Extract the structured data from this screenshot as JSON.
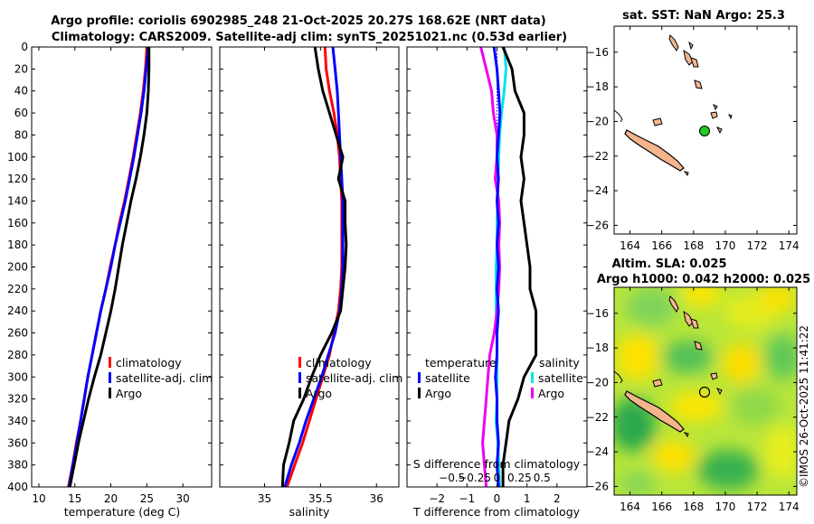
{
  "titles": {
    "line1": "Argo profile: coriolis 6902985_248 21-Oct-2025 20.27S 168.62E (NRT data)",
    "line2": "Climatology: CARS2009. Satellite-adj clim: synTS_20251021.nc (0.53d earlier)",
    "sst": "sat. SST: NaN Argo: 25.3",
    "altim1": "Altim. SLA: 0.025",
    "altim2": "Argo h1000: 0.042 h2000: 0.025",
    "credit": "©IMOS 26-Oct-2025 11:41:22"
  },
  "colors": {
    "climatology": "#ff0000",
    "satellite": "#0000ff",
    "argo": "#000000",
    "sal_satellite": "#00e5ee",
    "sal_argo": "#ee00ee",
    "land": "#f4b58c",
    "marker": "#22cc22"
  },
  "chart_data": [
    {
      "type": "line",
      "name": "temperature",
      "xlabel": "temperature (deg C)",
      "ylabel": "",
      "xlim": [
        9,
        34
      ],
      "ylim": [
        0,
        400
      ],
      "yreverse": true,
      "xticks": [
        10,
        15,
        20,
        25,
        30
      ],
      "yticks": [
        0,
        20,
        40,
        60,
        80,
        100,
        120,
        140,
        160,
        180,
        200,
        220,
        240,
        260,
        280,
        300,
        320,
        340,
        360,
        380,
        400
      ],
      "legend": [
        "climatology",
        "satellite-adj. clim",
        "Argo"
      ],
      "legend_position": "lower-right",
      "series": [
        {
          "name": "climatology",
          "color": "#ff0000",
          "depth": [
            0,
            20,
            40,
            60,
            80,
            100,
            120,
            140,
            160,
            180,
            200,
            220,
            240,
            260,
            280,
            300,
            320,
            340,
            360,
            380,
            400
          ],
          "values": [
            25.0,
            24.8,
            24.5,
            24.1,
            23.6,
            23.1,
            22.5,
            21.9,
            21.2,
            20.6,
            19.9,
            19.3,
            18.6,
            18.0,
            17.4,
            16.8,
            16.3,
            15.8,
            15.2,
            14.7,
            14.1
          ]
        },
        {
          "name": "satellite-adj. clim",
          "color": "#0000ff",
          "depth": [
            0,
            20,
            40,
            60,
            80,
            100,
            120,
            140,
            160,
            180,
            200,
            220,
            240,
            260,
            280,
            300,
            320,
            340,
            360,
            380,
            400
          ],
          "values": [
            25.2,
            24.9,
            24.6,
            24.2,
            23.7,
            23.2,
            22.6,
            22.0,
            21.3,
            20.6,
            20.0,
            19.3,
            18.6,
            18.0,
            17.4,
            16.8,
            16.3,
            15.8,
            15.3,
            14.7,
            14.2
          ]
        },
        {
          "name": "Argo",
          "color": "#000000",
          "depth": [
            0,
            20,
            40,
            60,
            80,
            100,
            120,
            140,
            160,
            180,
            200,
            220,
            240,
            260,
            280,
            300,
            320,
            340,
            360,
            380,
            400
          ],
          "values": [
            25.3,
            25.3,
            25.2,
            25.0,
            24.6,
            24.1,
            23.5,
            22.8,
            22.2,
            21.6,
            21.1,
            20.6,
            20.0,
            19.3,
            18.6,
            17.7,
            16.9,
            16.2,
            15.5,
            14.9,
            14.3
          ]
        }
      ]
    },
    {
      "type": "line",
      "name": "salinity",
      "xlabel": "salinity",
      "ylabel": "",
      "xlim": [
        34.6,
        36.2
      ],
      "ylim": [
        0,
        400
      ],
      "yreverse": true,
      "xticks": [
        35,
        35.5,
        36
      ],
      "legend": [
        "climatology",
        "satellite-adj. clim",
        "Argo"
      ],
      "legend_position": "lower-right",
      "series": [
        {
          "name": "climatology",
          "color": "#ff0000",
          "depth": [
            0,
            20,
            40,
            60,
            80,
            100,
            120,
            140,
            160,
            180,
            200,
            220,
            240,
            260,
            280,
            300,
            320,
            340,
            360,
            380,
            400
          ],
          "values": [
            35.54,
            35.55,
            35.58,
            35.62,
            35.65,
            35.67,
            35.68,
            35.69,
            35.69,
            35.69,
            35.69,
            35.68,
            35.66,
            35.62,
            35.58,
            35.52,
            35.46,
            35.4,
            35.34,
            35.27,
            35.2
          ]
        },
        {
          "name": "satellite-adj. clim",
          "color": "#0000ff",
          "depth": [
            0,
            20,
            40,
            60,
            80,
            100,
            120,
            140,
            160,
            180,
            200,
            220,
            240,
            260,
            280,
            300,
            320,
            340,
            360,
            380,
            400
          ],
          "values": [
            35.61,
            35.63,
            35.65,
            35.66,
            35.67,
            35.68,
            35.69,
            35.7,
            35.7,
            35.7,
            35.7,
            35.69,
            35.67,
            35.63,
            35.57,
            35.51,
            35.44,
            35.37,
            35.31,
            35.24,
            35.18
          ]
        },
        {
          "name": "Argo",
          "color": "#000000",
          "depth": [
            0,
            20,
            40,
            60,
            80,
            100,
            120,
            140,
            160,
            180,
            200,
            220,
            240,
            260,
            280,
            300,
            320,
            340,
            360,
            380,
            400
          ],
          "values": [
            35.45,
            35.48,
            35.52,
            35.58,
            35.64,
            35.7,
            35.66,
            35.72,
            35.72,
            35.73,
            35.72,
            35.7,
            35.68,
            35.6,
            35.5,
            35.42,
            35.35,
            35.26,
            35.22,
            35.17,
            35.16
          ]
        }
      ]
    },
    {
      "type": "line",
      "name": "difference from climatology",
      "xlabel": "T difference from climatology",
      "xlabel2": "S difference from climatology",
      "xlim": [
        -3,
        3
      ],
      "xlim2": [
        -1,
        1
      ],
      "ylim": [
        0,
        400
      ],
      "yreverse": true,
      "xticks": [
        -2,
        -1,
        0,
        1,
        2
      ],
      "xticks2": [
        -0.5,
        -0.25,
        0,
        0.25,
        0.5
      ],
      "legend": [
        "temperature",
        "satellite",
        "Argo",
        "salinity",
        "satellite",
        "Argo"
      ],
      "legend_position": "lower-right",
      "series": [
        {
          "name": "T satellite",
          "color": "#0000ff",
          "depth": [
            0,
            20,
            40,
            60,
            80,
            100,
            120,
            140,
            160,
            180,
            200,
            220,
            240,
            260,
            280,
            300,
            320,
            340,
            360,
            380,
            400
          ],
          "values": [
            -0.1,
            0.0,
            0.05,
            0.1,
            0.05,
            0.0,
            0.05,
            0.0,
            0.05,
            0.0,
            0.05,
            0.0,
            0.05,
            0.0,
            0.0,
            -0.05,
            0.0,
            0.0,
            0.05,
            0.0,
            0.05
          ]
        },
        {
          "name": "T Argo",
          "color": "#000000",
          "depth": [
            0,
            20,
            40,
            60,
            80,
            100,
            120,
            140,
            160,
            180,
            200,
            220,
            240,
            260,
            280,
            300,
            320,
            340,
            360,
            380,
            400
          ],
          "values": [
            0.2,
            0.5,
            0.6,
            0.9,
            0.9,
            0.8,
            0.9,
            0.8,
            0.9,
            1.0,
            1.1,
            1.1,
            1.3,
            1.3,
            1.3,
            0.9,
            0.7,
            0.4,
            0.3,
            0.2,
            0.2
          ]
        },
        {
          "name": "S satellite",
          "color": "#00e5ee",
          "depth": [
            0,
            20,
            40,
            60,
            80,
            100,
            120,
            140,
            160,
            180,
            200,
            220,
            240,
            260,
            280,
            300,
            320,
            340,
            360,
            380,
            400
          ],
          "values": [
            0.08,
            0.1,
            0.08,
            0.05,
            0.03,
            0.02,
            0.01,
            0.01,
            0.0,
            0.0,
            -0.01,
            -0.01,
            -0.01,
            0.0,
            0.0,
            0.0,
            0.0,
            -0.01,
            0.01,
            0.02,
            0.03
          ]
        },
        {
          "name": "S Argo",
          "color": "#ee00ee",
          "depth": [
            0,
            20,
            40,
            60,
            80,
            100,
            120,
            140,
            160,
            180,
            200,
            220,
            240,
            260,
            280,
            300,
            320,
            340,
            360,
            380,
            400
          ],
          "values": [
            -0.18,
            -0.12,
            -0.06,
            -0.04,
            0.0,
            0.0,
            -0.02,
            0.02,
            0.03,
            0.02,
            0.03,
            0.02,
            0.0,
            -0.03,
            -0.08,
            -0.1,
            -0.12,
            -0.14,
            -0.16,
            -0.14,
            -0.12
          ]
        }
      ]
    },
    {
      "type": "map",
      "name": "SST map",
      "xlim": [
        163,
        174.5
      ],
      "ylim": [
        -26.5,
        -14.5
      ],
      "xticks": [
        164,
        166,
        168,
        170,
        172,
        174
      ],
      "yticks": [
        -16,
        -18,
        -20,
        -22,
        -24,
        -26
      ],
      "yticks_labeled": [
        -16,
        -18,
        -20,
        -22,
        -24,
        -26
      ],
      "argo_position": {
        "lon": 168.62,
        "lat": -20.27
      }
    },
    {
      "type": "heatmap",
      "name": "Altimetry SLA map",
      "xlim": [
        163,
        174.5
      ],
      "ylim": [
        -26.5,
        -14.5
      ],
      "xticks": [
        164,
        166,
        168,
        170,
        172,
        174
      ],
      "yticks": [
        -16,
        -18,
        -20,
        -22,
        -24,
        -26
      ],
      "argo_position": {
        "lon": 168.62,
        "lat": -20.27
      }
    }
  ]
}
